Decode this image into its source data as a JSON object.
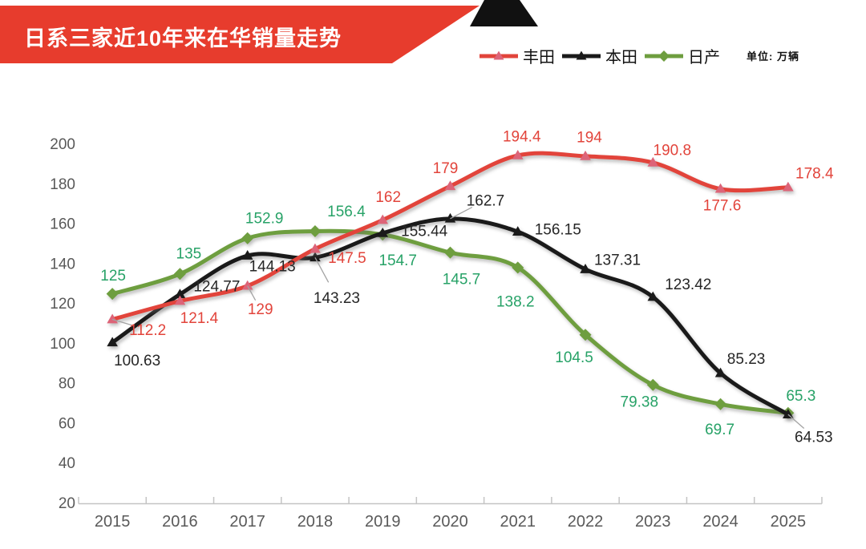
{
  "banner": {
    "title": "日系三家近10年来在华销量走势",
    "banner_color": "#e73c2d",
    "flag_color": "#111111"
  },
  "legend": {
    "items": [
      {
        "key": "toyota",
        "label": "丰田",
        "line_color": "#e2443b",
        "marker": "triangle",
        "marker_color": "#dd6478"
      },
      {
        "key": "honda",
        "label": "本田",
        "line_color": "#1a1a1a",
        "marker": "triangle",
        "marker_color": "#1a1a1a"
      },
      {
        "key": "nissan",
        "label": "日产",
        "line_color": "#6e9e3f",
        "marker": "diamond",
        "marker_color": "#6e9e3f"
      }
    ],
    "unit_label": "单位: 万辆"
  },
  "chart_data": {
    "type": "line",
    "title": "日系三家近10年来在华销量走势",
    "unit": "万辆",
    "x": [
      "2015",
      "2016",
      "2017",
      "2018",
      "2019",
      "2020",
      "2021",
      "2022",
      "2023",
      "2024",
      "2025"
    ],
    "ylim": [
      20,
      200
    ],
    "ytick_interval": 20,
    "yticks": [
      20,
      40,
      60,
      80,
      100,
      120,
      140,
      160,
      180,
      200
    ],
    "grid": false,
    "legend_position": "top-right",
    "smooth_lines": true,
    "axis": {
      "line_color": "#c4c4c4",
      "tick_color": "#c4c4c4",
      "label_color": "#595959",
      "leader_color": "#a3a3a3"
    },
    "series": [
      {
        "key": "toyota",
        "name": "丰田",
        "line_color": "#e2443b",
        "label_color": "#e2443b",
        "marker": "triangle",
        "marker_color": "#dd6478",
        "values": [
          112.2,
          121.4,
          129,
          147.5,
          162,
          179,
          194.4,
          194,
          190.8,
          177.6,
          178.4
        ],
        "labels": [
          "112.2",
          "121.4",
          "129",
          "147.5",
          "162",
          "179",
          "194.4",
          "194",
          "190.8",
          "177.6",
          "178.4"
        ],
        "label_offsets": [
          [
            44,
            13
          ],
          [
            24,
            21
          ],
          [
            16,
            29
          ],
          [
            40,
            11
          ],
          [
            7,
            -29
          ],
          [
            -6,
            -23
          ],
          [
            5,
            -24
          ],
          [
            5,
            -24
          ],
          [
            24,
            -16
          ],
          [
            2,
            20
          ],
          [
            33,
            -18
          ]
        ],
        "leader_indices": [
          0,
          2
        ]
      },
      {
        "key": "honda",
        "name": "本田",
        "line_color": "#1a1a1a",
        "label_color": "#262626",
        "marker": "triangle",
        "marker_color": "#1a1a1a",
        "values": [
          100.63,
          124.77,
          144.13,
          143.23,
          155.44,
          162.7,
          156.15,
          137.31,
          123.42,
          85.23,
          64.53
        ],
        "labels": [
          "100.63",
          "124.77",
          "144.13",
          "143.23",
          "155.44",
          "162.7",
          "156.15",
          "137.31",
          "123.42",
          "85.23",
          "64.53"
        ],
        "label_offsets": [
          [
            31,
            22
          ],
          [
            46,
            -10
          ],
          [
            31,
            13
          ],
          [
            27,
            50
          ],
          [
            52,
            -3
          ],
          [
            44,
            -23
          ],
          [
            50,
            -3
          ],
          [
            40,
            -12
          ],
          [
            44,
            -16
          ],
          [
            32,
            -18
          ],
          [
            32,
            28
          ]
        ],
        "leader_indices": [
          3,
          5,
          10
        ]
      },
      {
        "key": "nissan",
        "name": "日产",
        "line_color": "#6e9e3f",
        "label_color": "#27a267",
        "marker": "diamond",
        "marker_color": "#6e9e3f",
        "values": [
          125,
          135,
          152.9,
          156.4,
          154.7,
          145.7,
          138.2,
          104.5,
          79.38,
          69.7,
          65.3
        ],
        "labels": [
          "125",
          "135",
          "152.9",
          "156.4",
          "154.7",
          "145.7",
          "138.2",
          "104.5",
          "79.38",
          "69.7",
          "65.3"
        ],
        "label_offsets": [
          [
            1,
            -23
          ],
          [
            11,
            -26
          ],
          [
            21,
            -25
          ],
          [
            39,
            -25
          ],
          [
            19,
            32
          ],
          [
            14,
            33
          ],
          [
            -3,
            42
          ],
          [
            -14,
            28
          ],
          [
            -17,
            21
          ],
          [
            -1,
            31
          ],
          [
            16,
            -22
          ]
        ],
        "leader_indices": []
      }
    ]
  }
}
